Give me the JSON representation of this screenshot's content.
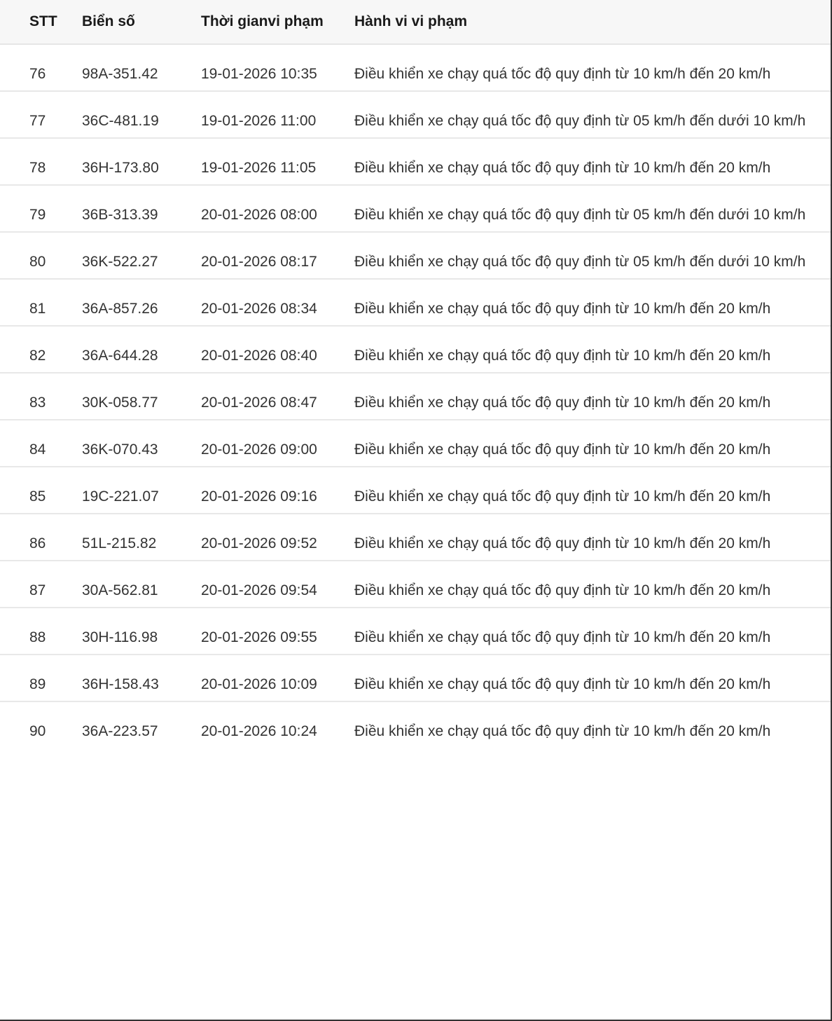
{
  "table": {
    "headers": [
      "STT",
      "Biển số",
      "Thời gianvi phạm",
      "Hành vi vi phạm"
    ],
    "rows": [
      {
        "stt": "76",
        "plate": "98A-351.42",
        "time": "19-01-2026 10:35",
        "violation": "Điều khiển xe chạy quá tốc độ quy định từ 10 km/h đến 20 km/h"
      },
      {
        "stt": "77",
        "plate": "36C-481.19",
        "time": "19-01-2026 11:00",
        "violation": "Điều khiển xe chạy quá tốc độ quy định từ 05 km/h đến dưới 10 km/h"
      },
      {
        "stt": "78",
        "plate": "36H-173.80",
        "time": "19-01-2026 11:05",
        "violation": "Điều khiển xe chạy quá tốc độ quy định từ 10 km/h đến 20 km/h"
      },
      {
        "stt": "79",
        "plate": "36B-313.39",
        "time": "20-01-2026 08:00",
        "violation": "Điều khiển xe chạy quá tốc độ quy định từ 05 km/h đến dưới 10 km/h"
      },
      {
        "stt": "80",
        "plate": "36K-522.27",
        "time": "20-01-2026 08:17",
        "violation": "Điều khiển xe chạy quá tốc độ quy định từ 05 km/h đến dưới 10 km/h"
      },
      {
        "stt": "81",
        "plate": "36A-857.26",
        "time": "20-01-2026 08:34",
        "violation": "Điều khiển xe chạy quá tốc độ quy định từ 10 km/h đến 20 km/h"
      },
      {
        "stt": "82",
        "plate": "36A-644.28",
        "time": "20-01-2026 08:40",
        "violation": "Điều khiển xe chạy quá tốc độ quy định từ 10 km/h đến 20 km/h"
      },
      {
        "stt": "83",
        "plate": "30K-058.77",
        "time": "20-01-2026 08:47",
        "violation": "Điều khiển xe chạy quá tốc độ quy định từ 10 km/h đến 20 km/h"
      },
      {
        "stt": "84",
        "plate": "36K-070.43",
        "time": "20-01-2026 09:00",
        "violation": "Điều khiển xe chạy quá tốc độ quy định từ 10 km/h đến 20 km/h"
      },
      {
        "stt": "85",
        "plate": "19C-221.07",
        "time": "20-01-2026 09:16",
        "violation": "Điều khiển xe chạy quá tốc độ quy định từ 10 km/h đến 20 km/h"
      },
      {
        "stt": "86",
        "plate": "51L-215.82",
        "time": "20-01-2026 09:52",
        "violation": "Điều khiển xe chạy quá tốc độ quy định từ 10 km/h đến 20 km/h"
      },
      {
        "stt": "87",
        "plate": "30A-562.81",
        "time": "20-01-2026 09:54",
        "violation": "Điều khiển xe chạy quá tốc độ quy định từ 10 km/h đến 20 km/h"
      },
      {
        "stt": "88",
        "plate": "30H-116.98",
        "time": "20-01-2026 09:55",
        "violation": "Điều khiển xe chạy quá tốc độ quy định từ 10 km/h đến 20 km/h"
      },
      {
        "stt": "89",
        "plate": "36H-158.43",
        "time": "20-01-2026 10:09",
        "violation": "Điều khiển xe chạy quá tốc độ quy định từ 10 km/h đến 20 km/h"
      },
      {
        "stt": "90",
        "plate": "36A-223.57",
        "time": "20-01-2026 10:24",
        "violation": "Điều khiển xe chạy quá tốc độ quy định từ 10 km/h đến 20 km/h"
      }
    ]
  }
}
